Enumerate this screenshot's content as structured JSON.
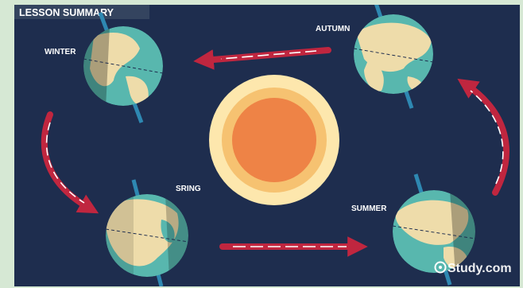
{
  "header": {
    "title": "LESSON SUMMARY"
  },
  "seasons": {
    "winter": "WINTER",
    "autumn": "AUTUMN",
    "spring": "SRING",
    "summer": "SUMMER"
  },
  "watermark": "Study.com",
  "icons": {
    "watermark": "study-logo-icon"
  },
  "colors": {
    "background": "#1e2d4e",
    "header_bar": "#34445f",
    "outer_frame": "#d6e8d4",
    "sun_core": "#ee8346",
    "sun_ring": "#f6c271",
    "sun_glow": "#fde7ad",
    "ocean": "#58b7ae",
    "land": "#eedcaa",
    "arrow": "#c0263f",
    "axis": "#2e88b2"
  }
}
